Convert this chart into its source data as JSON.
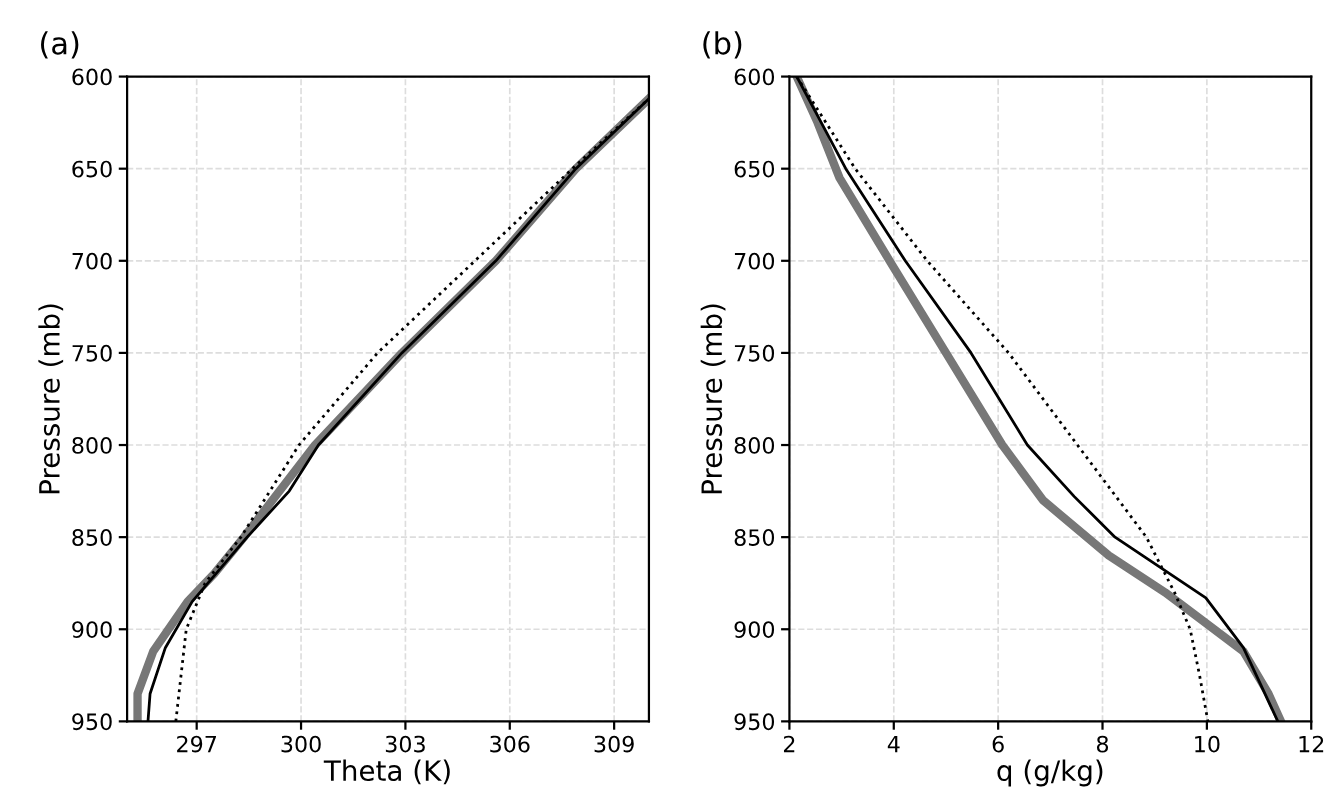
{
  "chart_data": [
    {
      "type": "line",
      "title": "(a)",
      "xlabel": "Theta (K)",
      "ylabel": "Pressure (mb)",
      "xlim": [
        295,
        310
      ],
      "xticks": [
        297,
        300,
        303,
        306,
        309
      ],
      "ylim": [
        950,
        600
      ],
      "yticks": [
        600,
        650,
        700,
        750,
        800,
        850,
        900,
        950
      ],
      "grid": true,
      "series": [
        {
          "color": "#777777",
          "line_style": "solid",
          "x": [
            295.3,
            295.3,
            295.75,
            296.74,
            297.5,
            298.36,
            300.4,
            302.9,
            305.6,
            307.9,
            310
          ],
          "values": [
            950,
            935,
            912,
            885,
            870,
            850,
            800,
            750,
            700,
            650,
            612
          ]
        },
        {
          "color": "#000000",
          "line_style": "solid",
          "x": [
            295.6,
            295.66,
            296.1,
            296.87,
            298.45,
            299.66,
            300.5,
            302.9,
            305.6,
            307.9,
            310
          ],
          "values": [
            950,
            935,
            910,
            885,
            850,
            825,
            800,
            750,
            700,
            650,
            612
          ]
        },
        {
          "color": "#000000",
          "line_style": "dotted",
          "x": [
            296.4,
            296.7,
            297.24,
            298.27,
            299.94,
            302.2,
            305,
            307.8,
            310
          ],
          "values": [
            950,
            900,
            875,
            850,
            800,
            750,
            700,
            650,
            612
          ]
        }
      ]
    },
    {
      "type": "line",
      "title": "(b)",
      "xlabel": "q (g/kg)",
      "ylabel": "Pressure (mb)",
      "xlim": [
        2,
        12
      ],
      "xticks": [
        2,
        4,
        6,
        8,
        10,
        12
      ],
      "ylim": [
        950,
        600
      ],
      "yticks": [
        600,
        650,
        700,
        750,
        800,
        850,
        900,
        950
      ],
      "grid": true,
      "series": [
        {
          "color": "#777777",
          "line_style": "solid",
          "x": [
            2.14,
            2.54,
            2.96,
            3.92,
            5.0,
            6.08,
            6.86,
            8.12,
            9.2,
            10.7,
            11.18,
            11.42
          ],
          "values": [
            600,
            625,
            655,
            700,
            750,
            800,
            830,
            860,
            880,
            912,
            935,
            950
          ]
        },
        {
          "color": "#000000",
          "line_style": "solid",
          "x": [
            2.14,
            3.08,
            4.22,
            5.48,
            6.56,
            7.46,
            8.24,
            9.98,
            10.7,
            11.36
          ],
          "values": [
            600,
            650,
            700,
            750,
            800,
            828,
            850,
            883,
            910,
            950
          ]
        },
        {
          "color": "#000000",
          "line_style": "dotted",
          "x": [
            2.14,
            3.26,
            4.64,
            6.2,
            7.52,
            8.84,
            9.38,
            9.68,
            9.86,
            10.02
          ],
          "values": [
            600,
            650,
            700,
            750,
            800,
            850,
            880,
            900,
            925,
            950
          ]
        }
      ]
    }
  ]
}
